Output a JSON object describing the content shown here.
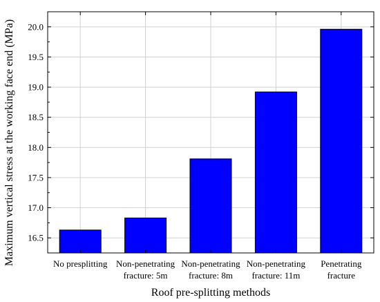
{
  "chart_data": {
    "type": "bar",
    "title": "",
    "xlabel": "Roof pre-splitting methods",
    "ylabel": "Maximum vertical stress at the  working face end (MPa)",
    "categories": [
      [
        "No presplitting"
      ],
      [
        "Non-penetrating",
        "fracture: 5m"
      ],
      [
        "Non-penetrating",
        "fracture: 8m"
      ],
      [
        "Non-penetrating",
        "fracture: 11m"
      ],
      [
        "Penetrating",
        "fracture"
      ]
    ],
    "values": [
      16.63,
      16.83,
      17.81,
      18.92,
      19.96
    ],
    "ylim": [
      16.25,
      20.25
    ],
    "yticks": [
      16.5,
      17.0,
      17.5,
      18.0,
      18.5,
      19.0,
      19.5,
      20.0
    ],
    "ytick_labels": [
      "16.5",
      "17.0",
      "17.5",
      "18.0",
      "18.5",
      "19.0",
      "19.5",
      "20.0"
    ],
    "grid": true,
    "bar_color": "#0000ff",
    "bar_edge_color": "#000000"
  }
}
